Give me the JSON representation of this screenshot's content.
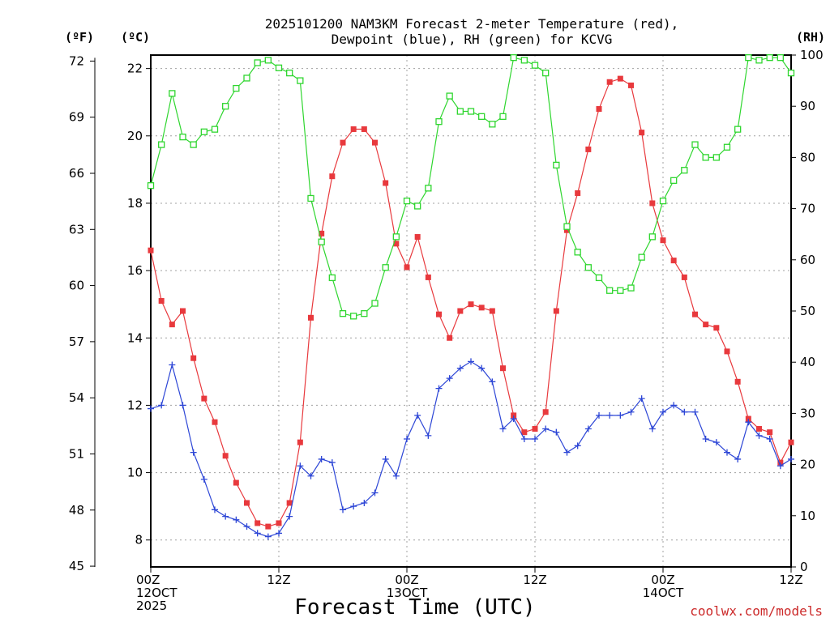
{
  "chart_data": {
    "type": "line",
    "title_line1": "2025101200 NAM3KM Forecast 2-meter Temperature (red),",
    "title_line2": "Dewpoint (blue), RH (green) for KCVG",
    "unit_f": "(ºF)",
    "unit_c": "(ºC)",
    "unit_rh": "(RH)",
    "xlabel": "Forecast Time (UTC)",
    "credit": "coolwx.com/models",
    "x_hours": [
      0,
      1,
      2,
      3,
      4,
      5,
      6,
      7,
      8,
      9,
      10,
      11,
      12,
      13,
      14,
      15,
      16,
      17,
      18,
      19,
      20,
      21,
      22,
      23,
      24,
      25,
      26,
      27,
      28,
      29,
      30,
      31,
      32,
      33,
      34,
      35,
      36,
      37,
      38,
      39,
      40,
      41,
      42,
      43,
      44,
      45,
      46,
      47,
      48,
      49,
      50,
      51,
      52,
      53,
      54,
      55,
      56,
      57,
      58,
      59,
      60
    ],
    "xlim": [
      0,
      60
    ],
    "x_ticks": [
      {
        "hour": 0,
        "lines": [
          "00Z",
          "12OCT",
          "2025"
        ]
      },
      {
        "hour": 12,
        "lines": [
          "12Z"
        ]
      },
      {
        "hour": 24,
        "lines": [
          "00Z",
          "13OCT"
        ]
      },
      {
        "hour": 36,
        "lines": [
          "12Z"
        ]
      },
      {
        "hour": 48,
        "lines": [
          "00Z",
          "14OCT"
        ]
      },
      {
        "hour": 60,
        "lines": [
          "12Z"
        ]
      }
    ],
    "y_celsius": {
      "range": [
        7.2,
        22.4
      ],
      "ticks": [
        8,
        10,
        12,
        14,
        16,
        18,
        20,
        22
      ]
    },
    "y_fahrenheit": {
      "ticks": [
        45,
        48,
        51,
        54,
        57,
        60,
        63,
        66,
        69,
        72
      ]
    },
    "y_rh": {
      "range": [
        0,
        100
      ],
      "ticks": [
        0,
        10,
        20,
        30,
        40,
        50,
        60,
        70,
        80,
        90,
        100
      ]
    },
    "series": [
      {
        "name": "2-meter Temperature",
        "color": "#e8393d",
        "marker": "filled-square",
        "axis": "celsius",
        "values": [
          16.6,
          15.1,
          14.4,
          14.8,
          13.4,
          12.2,
          11.5,
          10.5,
          9.7,
          9.1,
          8.5,
          8.4,
          8.5,
          9.1,
          10.9,
          14.6,
          17.1,
          18.8,
          19.8,
          20.2,
          20.2,
          19.8,
          18.6,
          16.8,
          16.1,
          17.0,
          15.8,
          14.7,
          14.0,
          14.8,
          15.0,
          14.9,
          14.8,
          13.1,
          11.7,
          11.2,
          11.3,
          11.8,
          14.8,
          17.2,
          18.3,
          19.6,
          20.8,
          21.6,
          21.7,
          21.5,
          20.1,
          18.0,
          16.9,
          16.3,
          15.8,
          14.7,
          14.4,
          14.3,
          13.6,
          12.7,
          11.6,
          11.3,
          11.2,
          10.3,
          10.9
        ]
      },
      {
        "name": "Dewpoint",
        "color": "#2d46d6",
        "marker": "plus",
        "axis": "celsius",
        "values": [
          11.9,
          12.0,
          13.2,
          12.0,
          10.6,
          9.8,
          8.9,
          8.7,
          8.6,
          8.4,
          8.2,
          8.1,
          8.2,
          8.7,
          10.2,
          9.9,
          10.4,
          10.3,
          8.9,
          9.0,
          9.1,
          9.4,
          10.4,
          9.9,
          11.0,
          11.7,
          11.1,
          12.5,
          12.8,
          13.1,
          13.3,
          13.1,
          12.7,
          11.3,
          11.6,
          11.0,
          11.0,
          11.3,
          11.2,
          10.6,
          10.8,
          11.3,
          11.7,
          11.7,
          11.7,
          11.8,
          12.2,
          11.3,
          11.8,
          12.0,
          11.8,
          11.8,
          11.0,
          10.9,
          10.6,
          10.4,
          11.5,
          11.1,
          11.0,
          10.2,
          10.4
        ]
      },
      {
        "name": "RH",
        "color": "#2fd62f",
        "marker": "open-square",
        "axis": "rh",
        "values": [
          74.5,
          82.5,
          92.5,
          84.0,
          82.5,
          85.0,
          85.5,
          90.0,
          93.5,
          95.5,
          98.5,
          99.0,
          97.5,
          96.5,
          95.0,
          72.0,
          63.5,
          56.5,
          49.5,
          49.0,
          49.5,
          51.5,
          58.5,
          64.5,
          71.5,
          70.5,
          74.0,
          87.0,
          92.0,
          89.0,
          89.0,
          88.0,
          86.5,
          88.0,
          99.5,
          99.0,
          98.0,
          96.5,
          78.5,
          66.5,
          61.5,
          58.5,
          56.5,
          54.0,
          54.0,
          54.5,
          60.5,
          64.5,
          71.5,
          75.5,
          77.5,
          82.5,
          80.0,
          80.0,
          82.0,
          85.5,
          99.5,
          99.0,
          99.5,
          99.5,
          96.5
        ]
      }
    ]
  }
}
